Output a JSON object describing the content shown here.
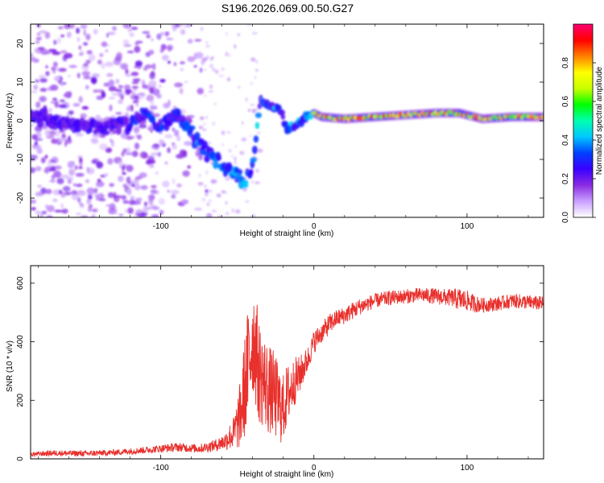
{
  "title": "S196.2026.069.00.50.G27",
  "chart_data": [
    {
      "type": "heatmap",
      "name": "spectrogram",
      "xlabel": "Height of straight line (km)",
      "ylabel": "Frequency (Hz)",
      "xlim": [
        -185,
        150
      ],
      "ylim": [
        -25,
        25
      ],
      "x_ticks": [
        -100,
        0,
        100
      ],
      "x_tick_labels": [
        "-100",
        "0",
        "100"
      ],
      "y_ticks": [
        -20,
        -10,
        0,
        10,
        20
      ],
      "y_tick_labels": [
        "-20",
        "-10",
        "0",
        "10",
        "20"
      ],
      "colorbar": {
        "label": "Normalized spectral amplitude",
        "range": [
          0,
          1
        ],
        "ticks": [
          0.0,
          0.2,
          0.4,
          0.6,
          0.8
        ],
        "tick_labels": [
          "0.0",
          "0.2",
          "0.4",
          "0.6",
          "0.8"
        ],
        "colors": [
          "#ffffff",
          "#c9a0ff",
          "#8a2be2",
          "#3a00ff",
          "#0040ff",
          "#00c8ff",
          "#00ffb0",
          "#00ff00",
          "#c8ff00",
          "#ffff00",
          "#ff8000",
          "#ff0000",
          "#ff0070"
        ]
      },
      "ridge": [
        {
          "x": -180,
          "f": 1.0
        },
        {
          "x": -160,
          "f": -1.0
        },
        {
          "x": -140,
          "f": -2.0
        },
        {
          "x": -120,
          "f": -1.0
        },
        {
          "x": -110,
          "f": 1.5
        },
        {
          "x": -100,
          "f": -1.5
        },
        {
          "x": -90,
          "f": 2.0
        },
        {
          "x": -82,
          "f": -2.0
        },
        {
          "x": -75,
          "f": -6.0
        },
        {
          "x": -70,
          "f": -8.0
        },
        {
          "x": -65,
          "f": -10.0
        },
        {
          "x": -58,
          "f": -12.0
        },
        {
          "x": -50,
          "f": -14.0
        },
        {
          "x": -45,
          "f": -16.0
        },
        {
          "x": -40,
          "f": -12.0
        },
        {
          "x": -35,
          "f": 5.0
        },
        {
          "x": -28,
          "f": 4.0
        },
        {
          "x": -22,
          "f": 3.0
        },
        {
          "x": -18,
          "f": -2.0
        },
        {
          "x": -12,
          "f": -1.0
        },
        {
          "x": -5,
          "f": 1.0
        },
        {
          "x": 0,
          "f": 2.0
        },
        {
          "x": 5,
          "f": 1.0
        },
        {
          "x": 20,
          "f": 0.5
        },
        {
          "x": 40,
          "f": 1.0
        },
        {
          "x": 60,
          "f": 1.5
        },
        {
          "x": 80,
          "f": 2.0
        },
        {
          "x": 95,
          "f": 2.0
        },
        {
          "x": 110,
          "f": 0.5
        },
        {
          "x": 130,
          "f": 1.0
        },
        {
          "x": 150,
          "f": 1.0
        }
      ]
    },
    {
      "type": "line",
      "name": "snr",
      "xlabel": "Height of straight line (km)",
      "ylabel": "SNR (10 * v/v)",
      "xlim": [
        -185,
        150
      ],
      "ylim": [
        0,
        660
      ],
      "x_ticks": [
        -100,
        0,
        100
      ],
      "x_tick_labels": [
        "-100",
        "0",
        "100"
      ],
      "y_ticks": [
        0,
        200,
        400,
        600
      ],
      "y_tick_labels": [
        "0",
        "200",
        "400",
        "600"
      ],
      "color": "#e8302c",
      "series": [
        {
          "name": "SNR",
          "x": [
            -185,
            -170,
            -150,
            -130,
            -110,
            -90,
            -75,
            -65,
            -58,
            -52,
            -48,
            -45,
            -42,
            -40,
            -38,
            -36,
            -34,
            -32,
            -30,
            -28,
            -26,
            -24,
            -22,
            -20,
            -18,
            -16,
            -14,
            -12,
            -10,
            -8,
            -6,
            -4,
            -2,
            0,
            5,
            10,
            15,
            20,
            25,
            30,
            40,
            50,
            60,
            70,
            80,
            90,
            95,
            100,
            105,
            110,
            120,
            130,
            140,
            150
          ],
          "y": [
            15,
            20,
            18,
            22,
            30,
            40,
            35,
            45,
            60,
            90,
            150,
            250,
            350,
            420,
            380,
            300,
            280,
            260,
            240,
            230,
            220,
            200,
            180,
            170,
            210,
            230,
            250,
            270,
            280,
            300,
            320,
            340,
            370,
            400,
            430,
            460,
            480,
            490,
            505,
            520,
            540,
            550,
            555,
            560,
            555,
            550,
            545,
            540,
            530,
            525,
            530,
            540,
            535,
            530
          ],
          "noise": [
            8,
            10,
            10,
            10,
            12,
            15,
            15,
            20,
            30,
            60,
            120,
            180,
            220,
            200,
            200,
            180,
            170,
            160,
            160,
            150,
            150,
            140,
            130,
            120,
            110,
            100,
            90,
            80,
            70,
            60,
            50,
            45,
            40,
            40,
            35,
            35,
            30,
            30,
            30,
            28,
            25,
            25,
            25,
            25,
            28,
            30,
            40,
            35,
            30,
            25,
            25,
            25,
            25,
            25
          ]
        }
      ]
    }
  ]
}
